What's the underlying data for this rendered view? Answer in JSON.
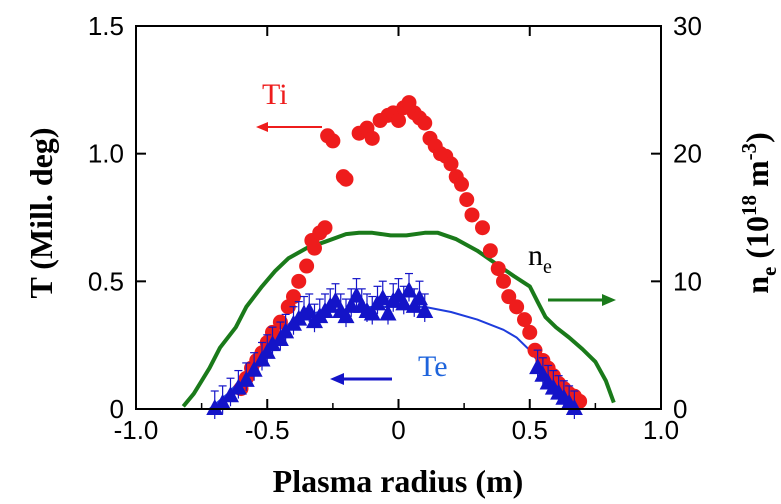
{
  "chart_data": {
    "type": "scatter",
    "xlabel": "Plasma radius (m)",
    "ylabel_left": "T (Mill. deg)",
    "ylabel_right_parts": {
      "n": "n",
      "e": "e",
      "open": " (10",
      "exp": "18",
      "unit": " m",
      "uexp": "-3",
      "close": ")"
    },
    "xlim": [
      -1.0,
      1.0
    ],
    "ylim_left": [
      0,
      1.5
    ],
    "ylim_right": [
      0,
      30
    ],
    "x_ticks": [
      "-1.0",
      "-0.5",
      "0",
      "0.5",
      "1.0"
    ],
    "y_left_ticks": [
      "0",
      "0.5",
      "1.0",
      "1.5"
    ],
    "y_right_ticks": [
      "0",
      "10",
      "20",
      "30"
    ],
    "grid": false,
    "annotations": {
      "ti": "Ti",
      "te": "Te",
      "ne_n": "n",
      "ne_e": "e"
    },
    "colors": {
      "ti": "#ee1c1c",
      "te": "#1414c8",
      "te_fit": "#1e3cdc",
      "ne": "#1a7a1a",
      "axis": "#000000"
    },
    "series": [
      {
        "key": "ti",
        "marker": "circle",
        "axis": "left",
        "x": [
          -0.33,
          -0.3,
          -0.28,
          -0.32,
          -0.35,
          -0.38,
          -0.4,
          -0.42,
          -0.45,
          -0.48,
          -0.5,
          -0.52,
          -0.54,
          -0.56,
          -0.58,
          -0.6,
          -0.27,
          -0.25,
          -0.21,
          -0.2,
          -0.15,
          -0.12,
          -0.1,
          -0.07,
          -0.04,
          -0.02,
          0.0,
          0.02,
          0.04,
          0.06,
          0.08,
          0.1,
          0.12,
          0.14,
          0.16,
          0.18,
          0.2,
          0.22,
          0.24,
          0.26,
          0.28,
          0.32,
          0.35,
          0.38,
          0.4,
          0.42,
          0.45,
          0.48,
          0.5,
          0.52,
          0.55,
          0.57,
          0.59,
          0.61,
          0.63,
          0.65,
          0.67,
          0.69
        ],
        "y": [
          0.66,
          0.69,
          0.71,
          0.63,
          0.56,
          0.5,
          0.44,
          0.4,
          0.34,
          0.3,
          0.26,
          0.22,
          0.19,
          0.16,
          0.12,
          0.08,
          1.07,
          1.05,
          0.91,
          0.9,
          1.08,
          1.1,
          1.06,
          1.13,
          1.15,
          1.16,
          1.13,
          1.18,
          1.2,
          1.16,
          1.14,
          1.12,
          1.06,
          1.03,
          1.0,
          0.99,
          0.96,
          0.91,
          0.88,
          0.82,
          0.76,
          0.71,
          0.62,
          0.55,
          0.5,
          0.44,
          0.4,
          0.35,
          0.3,
          0.23,
          0.19,
          0.16,
          0.13,
          0.1,
          0.08,
          0.06,
          0.05,
          0.03
        ]
      },
      {
        "key": "te",
        "marker": "triangle",
        "axis": "left",
        "x": [
          -0.7,
          -0.67,
          -0.64,
          -0.61,
          -0.58,
          -0.55,
          -0.52,
          -0.5,
          -0.48,
          -0.45,
          -0.43,
          -0.4,
          -0.38,
          -0.36,
          -0.34,
          -0.32,
          -0.3,
          -0.28,
          -0.26,
          -0.24,
          -0.22,
          -0.2,
          -0.18,
          -0.16,
          -0.14,
          -0.12,
          -0.1,
          -0.08,
          -0.06,
          -0.04,
          -0.02,
          0.0,
          0.02,
          0.04,
          0.06,
          0.08,
          0.1,
          0.53,
          0.55,
          0.57,
          0.59,
          0.61,
          0.63,
          0.65,
          0.67
        ],
        "y": [
          0.0,
          0.02,
          0.05,
          0.08,
          0.11,
          0.15,
          0.19,
          0.22,
          0.25,
          0.27,
          0.3,
          0.33,
          0.35,
          0.37,
          0.38,
          0.34,
          0.36,
          0.38,
          0.4,
          0.42,
          0.38,
          0.36,
          0.4,
          0.44,
          0.4,
          0.38,
          0.37,
          0.41,
          0.43,
          0.37,
          0.42,
          0.44,
          0.41,
          0.46,
          0.4,
          0.43,
          0.38,
          0.16,
          0.13,
          0.1,
          0.08,
          0.06,
          0.04,
          0.02,
          0.0
        ]
      }
    ],
    "lines": [
      {
        "key": "ne",
        "axis": "right",
        "x": [
          -0.82,
          -0.78,
          -0.72,
          -0.68,
          -0.62,
          -0.58,
          -0.52,
          -0.47,
          -0.42,
          -0.35,
          -0.28,
          -0.2,
          -0.15,
          -0.1,
          -0.03,
          0.03,
          0.1,
          0.15,
          0.22,
          0.3,
          0.37,
          0.44,
          0.5,
          0.53,
          0.56,
          0.6,
          0.65,
          0.7,
          0.75,
          0.79,
          0.82
        ],
        "y": [
          0.2,
          1.2,
          3.2,
          4.8,
          6.4,
          8.0,
          9.6,
          10.8,
          11.8,
          12.6,
          13.1,
          13.7,
          13.8,
          13.8,
          13.6,
          13.6,
          13.8,
          13.8,
          13.3,
          12.4,
          11.4,
          10.4,
          9.6,
          8.4,
          7.2,
          6.4,
          5.6,
          4.7,
          3.7,
          2.2,
          0.5
        ]
      },
      {
        "key": "te_fit",
        "axis": "left",
        "x": [
          -0.72,
          -0.65,
          -0.58,
          -0.5,
          -0.45,
          -0.4,
          -0.35,
          -0.3,
          -0.2,
          -0.1,
          0.0,
          0.05,
          0.1,
          0.2,
          0.3,
          0.4,
          0.45,
          0.5,
          0.55,
          0.58,
          0.62,
          0.66,
          0.7
        ],
        "y": [
          0.0,
          0.06,
          0.14,
          0.24,
          0.3,
          0.35,
          0.37,
          0.38,
          0.39,
          0.4,
          0.4,
          0.4,
          0.4,
          0.38,
          0.35,
          0.31,
          0.28,
          0.23,
          0.16,
          0.11,
          0.07,
          0.03,
          0.0
        ]
      }
    ]
  }
}
